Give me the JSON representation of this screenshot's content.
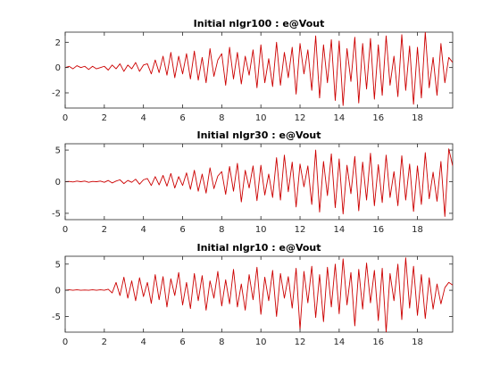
{
  "colors": {
    "trace": "#cc0000",
    "axes": "#262626",
    "background": "#ffffff"
  },
  "chart_data": [
    {
      "type": "line",
      "title": "Initial nlgr100 : e@Vout",
      "xlim": [
        0,
        19.8
      ],
      "ylim": [
        -3.2,
        2.8
      ],
      "xticks": [
        0,
        2,
        4,
        6,
        8,
        10,
        12,
        14,
        16,
        18
      ],
      "xtick_labels": [
        "0",
        "2",
        "4",
        "6",
        "8",
        "10",
        "12",
        "14",
        "16",
        "18"
      ],
      "yticks": [
        -2,
        0,
        2
      ],
      "ytick_labels": [
        "-2",
        "0",
        "2"
      ],
      "grid": false,
      "series": [
        {
          "x": [
            0,
            0.2,
            0.4,
            0.6,
            0.8,
            1.0,
            1.2,
            1.4,
            1.6,
            1.8,
            2.0,
            2.2,
            2.4,
            2.6,
            2.8,
            3.0,
            3.2,
            3.4,
            3.6,
            3.8,
            4.0,
            4.2,
            4.4,
            4.6,
            4.8,
            5.0,
            5.2,
            5.4,
            5.6,
            5.8,
            6.0,
            6.2,
            6.4,
            6.6,
            6.8,
            7.0,
            7.2,
            7.4,
            7.6,
            7.8,
            8.0,
            8.2,
            8.4,
            8.6,
            8.8,
            9.0,
            9.2,
            9.4,
            9.6,
            9.8,
            10.0,
            10.2,
            10.4,
            10.6,
            10.8,
            11.0,
            11.2,
            11.4,
            11.6,
            11.8,
            12.0,
            12.2,
            12.4,
            12.6,
            12.8,
            13.0,
            13.2,
            13.4,
            13.6,
            13.8,
            14.0,
            14.2,
            14.4,
            14.6,
            14.8,
            15.0,
            15.2,
            15.4,
            15.6,
            15.8,
            16.0,
            16.2,
            16.4,
            16.6,
            16.8,
            17.0,
            17.2,
            17.4,
            17.6,
            17.8,
            18.0,
            18.2,
            18.4,
            18.6,
            18.8,
            19.0,
            19.2,
            19.4,
            19.6,
            19.8
          ],
          "y": [
            0.0,
            0.1,
            -0.1,
            0.15,
            0.0,
            0.1,
            -0.15,
            0.1,
            -0.1,
            0.0,
            0.1,
            -0.2,
            0.2,
            -0.1,
            0.3,
            -0.3,
            0.2,
            -0.1,
            0.4,
            -0.3,
            0.2,
            0.3,
            -0.5,
            0.6,
            -0.4,
            0.9,
            -0.6,
            1.2,
            -0.8,
            0.9,
            -0.5,
            1.1,
            -0.9,
            1.3,
            -1.0,
            0.8,
            -1.2,
            1.5,
            -0.7,
            0.6,
            1.1,
            -1.4,
            1.6,
            -0.9,
            1.2,
            -1.3,
            0.9,
            -0.6,
            1.4,
            -1.6,
            1.8,
            -1.2,
            0.7,
            -1.5,
            2.0,
            -1.4,
            1.2,
            -0.8,
            1.6,
            -2.1,
            1.9,
            -0.5,
            1.4,
            -1.8,
            2.5,
            -2.4,
            1.8,
            -1.2,
            2.2,
            -2.6,
            2.1,
            -3.0,
            1.5,
            -1.1,
            2.4,
            -2.8,
            1.9,
            -1.7,
            2.3,
            -2.5,
            1.8,
            -2.2,
            2.5,
            -1.4,
            0.9,
            -2.3,
            2.6,
            -1.8,
            1.7,
            -2.9,
            1.6,
            -2.4,
            2.8,
            -1.6,
            0.8,
            -2.2,
            1.9,
            -1.2,
            0.8,
            0.4
          ]
        }
      ]
    },
    {
      "type": "line",
      "title": "Initial nlgr30 : e@Vout",
      "xlim": [
        0,
        19.8
      ],
      "ylim": [
        -6,
        6
      ],
      "xticks": [
        0,
        2,
        4,
        6,
        8,
        10,
        12,
        14,
        16,
        18
      ],
      "xtick_labels": [
        "0",
        "2",
        "4",
        "6",
        "8",
        "10",
        "12",
        "14",
        "16",
        "18"
      ],
      "yticks": [
        -5,
        0,
        5
      ],
      "ytick_labels": [
        "-5",
        "0",
        "5"
      ],
      "grid": false,
      "series": [
        {
          "x": [
            0,
            0.2,
            0.4,
            0.6,
            0.8,
            1.0,
            1.2,
            1.4,
            1.6,
            1.8,
            2.0,
            2.2,
            2.4,
            2.6,
            2.8,
            3.0,
            3.2,
            3.4,
            3.6,
            3.8,
            4.0,
            4.2,
            4.4,
            4.6,
            4.8,
            5.0,
            5.2,
            5.4,
            5.6,
            5.8,
            6.0,
            6.2,
            6.4,
            6.6,
            6.8,
            7.0,
            7.2,
            7.4,
            7.6,
            7.8,
            8.0,
            8.2,
            8.4,
            8.6,
            8.8,
            9.0,
            9.2,
            9.4,
            9.6,
            9.8,
            10.0,
            10.2,
            10.4,
            10.6,
            10.8,
            11.0,
            11.2,
            11.4,
            11.6,
            11.8,
            12.0,
            12.2,
            12.4,
            12.6,
            12.8,
            13.0,
            13.2,
            13.4,
            13.6,
            13.8,
            14.0,
            14.2,
            14.4,
            14.6,
            14.8,
            15.0,
            15.2,
            15.4,
            15.6,
            15.8,
            16.0,
            16.2,
            16.4,
            16.6,
            16.8,
            17.0,
            17.2,
            17.4,
            17.6,
            17.8,
            18.0,
            18.2,
            18.4,
            18.6,
            18.8,
            19.0,
            19.2,
            19.4,
            19.6,
            19.8
          ],
          "y": [
            0.0,
            0.05,
            -0.05,
            0.1,
            0.0,
            0.1,
            -0.1,
            0.05,
            0.0,
            0.1,
            -0.1,
            0.2,
            -0.2,
            0.1,
            0.3,
            -0.3,
            0.2,
            -0.1,
            0.4,
            -0.4,
            0.3,
            0.5,
            -0.6,
            0.8,
            -0.5,
            1.0,
            -0.7,
            1.3,
            -1.0,
            0.8,
            -0.6,
            1.4,
            -1.2,
            1.8,
            -1.5,
            1.2,
            -1.8,
            2.2,
            -1.1,
            0.9,
            1.6,
            -2.0,
            2.4,
            -1.5,
            2.9,
            -3.2,
            1.8,
            -1.0,
            2.5,
            -3.0,
            2.6,
            -2.1,
            1.2,
            -2.5,
            3.8,
            -2.9,
            4.2,
            -1.6,
            3.1,
            -4.0,
            2.8,
            -0.8,
            2.5,
            -3.6,
            5.0,
            -4.8,
            3.2,
            -2.2,
            4.4,
            -4.1,
            3.6,
            -5.1,
            2.6,
            -1.9,
            4.0,
            -4.6,
            3.1,
            -2.9,
            4.5,
            -3.8,
            2.7,
            -3.3,
            4.2,
            -2.5,
            1.6,
            -3.8,
            4.1,
            -2.9,
            2.8,
            -4.7,
            2.5,
            -3.6,
            4.6,
            -2.7,
            1.5,
            -3.1,
            3.2,
            -5.5,
            5.2,
            2.5
          ]
        }
      ]
    },
    {
      "type": "line",
      "title": "Initial nlgr10 : e@Vout",
      "xlim": [
        0,
        19.8
      ],
      "ylim": [
        -8,
        6.5
      ],
      "xticks": [
        0,
        2,
        4,
        6,
        8,
        10,
        12,
        14,
        16,
        18
      ],
      "xtick_labels": [
        "0",
        "2",
        "4",
        "6",
        "8",
        "10",
        "12",
        "14",
        "16",
        "18"
      ],
      "yticks": [
        -5,
        0,
        5
      ],
      "ytick_labels": [
        "-5",
        "0",
        "5"
      ],
      "grid": false,
      "series": [
        {
          "x": [
            0,
            0.2,
            0.4,
            0.6,
            0.8,
            1.0,
            1.2,
            1.4,
            1.6,
            1.8,
            2.0,
            2.2,
            2.4,
            2.6,
            2.8,
            3.0,
            3.2,
            3.4,
            3.6,
            3.8,
            4.0,
            4.2,
            4.4,
            4.6,
            4.8,
            5.0,
            5.2,
            5.4,
            5.6,
            5.8,
            6.0,
            6.2,
            6.4,
            6.6,
            6.8,
            7.0,
            7.2,
            7.4,
            7.6,
            7.8,
            8.0,
            8.2,
            8.4,
            8.6,
            8.8,
            9.0,
            9.2,
            9.4,
            9.6,
            9.8,
            10.0,
            10.2,
            10.4,
            10.6,
            10.8,
            11.0,
            11.2,
            11.4,
            11.6,
            11.8,
            12.0,
            12.2,
            12.4,
            12.6,
            12.8,
            13.0,
            13.2,
            13.4,
            13.6,
            13.8,
            14.0,
            14.2,
            14.4,
            14.6,
            14.8,
            15.0,
            15.2,
            15.4,
            15.6,
            15.8,
            16.0,
            16.2,
            16.4,
            16.6,
            16.8,
            17.0,
            17.2,
            17.4,
            17.6,
            17.8,
            18.0,
            18.2,
            18.4,
            18.6,
            18.8,
            19.0,
            19.2,
            19.4,
            19.6,
            19.8
          ],
          "y": [
            0.0,
            0.1,
            0.0,
            0.1,
            0.0,
            0.05,
            0.0,
            0.1,
            0.0,
            0.1,
            0.0,
            0.2,
            -0.5,
            1.5,
            -1.0,
            2.5,
            -1.5,
            1.8,
            -2.0,
            2.4,
            -1.2,
            1.5,
            -2.5,
            3.0,
            -1.8,
            2.6,
            -3.2,
            2.2,
            -1.0,
            3.4,
            -2.8,
            1.5,
            -3.5,
            3.2,
            -2.0,
            2.8,
            -3.8,
            1.8,
            -1.5,
            3.6,
            -3.0,
            2.0,
            -2.6,
            4.0,
            -3.2,
            1.2,
            -3.8,
            3.0,
            -1.8,
            4.4,
            -4.6,
            2.5,
            -2.0,
            3.8,
            -5.0,
            3.2,
            -1.5,
            2.6,
            -3.4,
            4.2,
            -7.5,
            3.6,
            -2.4,
            4.6,
            -5.2,
            3.0,
            -6.0,
            4.4,
            -3.2,
            5.0,
            -4.5,
            6.0,
            -2.8,
            3.4,
            -6.8,
            4.0,
            -3.6,
            5.2,
            -2.4,
            3.8,
            -5.8,
            4.2,
            -8.0,
            3.2,
            -2.0,
            5.0,
            -5.6,
            6.2,
            -3.4,
            4.6,
            -4.8,
            3.0,
            -5.4,
            2.4,
            -3.6,
            1.2,
            -2.6,
            0.5,
            1.5,
            1.0
          ]
        }
      ]
    }
  ]
}
